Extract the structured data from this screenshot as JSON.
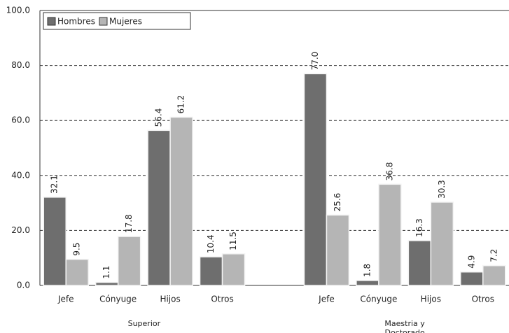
{
  "chart_data": {
    "type": "bar",
    "categories": [
      "Jefe",
      "Cónyuge",
      "Hijos",
      "Otros",
      null,
      "Jefe",
      "Cónyuge",
      "Hijos",
      "Otros"
    ],
    "groups": [
      {
        "label": "Superior",
        "start": 0,
        "end": 3
      },
      {
        "label": "Maestria y Doctorado",
        "start": 5,
        "end": 8
      }
    ],
    "series": [
      {
        "name": "Hombres",
        "color": "#6e6e6e",
        "values": [
          32.1,
          1.1,
          56.4,
          10.4,
          null,
          77.0,
          1.8,
          16.3,
          4.9
        ],
        "value_labels": [
          "32.1",
          "1.1",
          "56.4",
          "10.4",
          null,
          "77.0",
          "1.8",
          "16.3",
          "4.9"
        ]
      },
      {
        "name": "Mujeres",
        "color": "#b5b5b5",
        "values": [
          9.5,
          17.8,
          61.2,
          11.5,
          null,
          25.6,
          36.8,
          30.3,
          7.2
        ],
        "value_labels": [
          "9.5",
          "17.8",
          "61.2",
          "11.5",
          null,
          "25.6",
          "36.8",
          "30.3",
          "7.2"
        ]
      }
    ],
    "ylim": [
      0,
      100
    ],
    "yticks": [
      {
        "value": 0,
        "label": "0.0"
      },
      {
        "value": 20,
        "label": "20.0"
      },
      {
        "value": 40,
        "label": "40.0"
      },
      {
        "value": 60,
        "label": "60.0"
      },
      {
        "value": 80,
        "label": "80.0"
      },
      {
        "value": 100,
        "label": "100.0"
      }
    ],
    "grid": true,
    "legend": "top-left"
  }
}
